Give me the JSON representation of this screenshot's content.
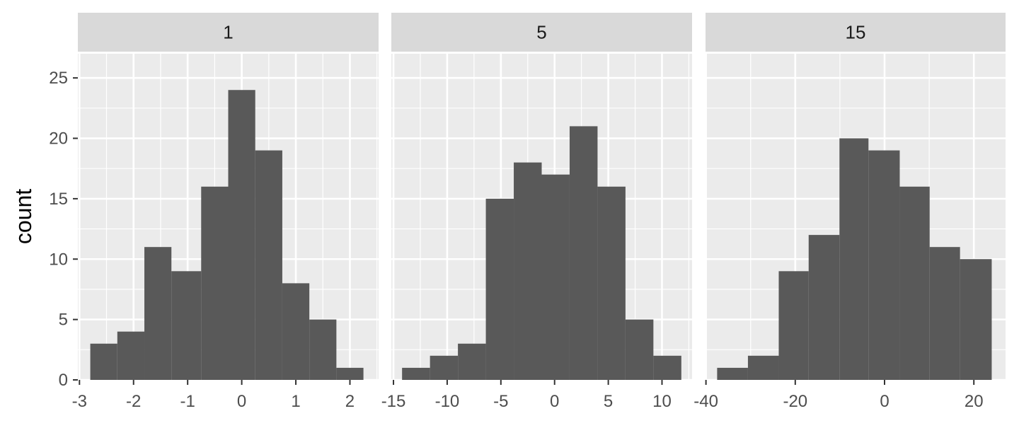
{
  "chart_data": {
    "type": "bar",
    "subtype": "histogram-facets",
    "ylabel": "count",
    "xlabel": "",
    "ylim": [
      0,
      27
    ],
    "y_ticks": [
      0,
      5,
      10,
      15,
      20,
      25
    ],
    "bar_color": "#595959",
    "panel_bg": "#ebebeb",
    "strip_bg": "#d9d9d9",
    "grid": true,
    "facets": [
      {
        "label": "1",
        "xlim": [
          -3.03,
          2.53
        ],
        "x_ticks": [
          -3,
          -2,
          -1,
          0,
          1,
          2
        ],
        "x_tick_labels": [
          "-3",
          "-2",
          "-1",
          "0",
          "1",
          "2"
        ],
        "bins": [
          {
            "x0": -2.8,
            "x1": -2.3,
            "count": 3
          },
          {
            "x0": -2.3,
            "x1": -1.8,
            "count": 4
          },
          {
            "x0": -1.8,
            "x1": -1.3,
            "count": 11
          },
          {
            "x0": -1.3,
            "x1": -0.75,
            "count": 9
          },
          {
            "x0": -0.75,
            "x1": -0.25,
            "count": 16
          },
          {
            "x0": -0.25,
            "x1": 0.25,
            "count": 24
          },
          {
            "x0": 0.25,
            "x1": 0.75,
            "count": 19
          },
          {
            "x0": 0.75,
            "x1": 1.25,
            "count": 8
          },
          {
            "x0": 1.25,
            "x1": 1.75,
            "count": 5
          },
          {
            "x0": 1.75,
            "x1": 2.25,
            "count": 1
          }
        ]
      },
      {
        "label": "5",
        "xlim": [
          -15.2,
          12.8
        ],
        "x_ticks": [
          -15,
          -10,
          -5,
          0,
          5,
          10
        ],
        "x_tick_labels": [
          "-15",
          "-10",
          "-5",
          "0",
          "5",
          "10"
        ],
        "bins": [
          {
            "x0": -14.2,
            "x1": -11.6,
            "count": 1
          },
          {
            "x0": -11.6,
            "x1": -9.0,
            "count": 2
          },
          {
            "x0": -9.0,
            "x1": -6.4,
            "count": 3
          },
          {
            "x0": -6.4,
            "x1": -3.8,
            "count": 15
          },
          {
            "x0": -3.8,
            "x1": -1.2,
            "count": 18
          },
          {
            "x0": -1.2,
            "x1": 1.4,
            "count": 17
          },
          {
            "x0": 1.4,
            "x1": 4.0,
            "count": 21
          },
          {
            "x0": 4.0,
            "x1": 6.6,
            "count": 16
          },
          {
            "x0": 6.6,
            "x1": 9.2,
            "count": 5
          },
          {
            "x0": 9.2,
            "x1": 11.8,
            "count": 2
          }
        ]
      },
      {
        "label": "15",
        "xlim": [
          -40.1,
          27.1
        ],
        "x_ticks": [
          -40,
          -20,
          0,
          20
        ],
        "x_tick_labels": [
          "-40",
          "-20",
          "0",
          "20"
        ],
        "bins": [
          {
            "x0": -37.5,
            "x1": -30.6,
            "count": 1
          },
          {
            "x0": -30.6,
            "x1": -23.7,
            "count": 2
          },
          {
            "x0": -23.7,
            "x1": -17.0,
            "count": 9
          },
          {
            "x0": -17.0,
            "x1": -10.1,
            "count": 12
          },
          {
            "x0": -10.1,
            "x1": -3.6,
            "count": 20
          },
          {
            "x0": -3.6,
            "x1": 3.4,
            "count": 19
          },
          {
            "x0": 3.4,
            "x1": 10.1,
            "count": 16
          },
          {
            "x0": 10.1,
            "x1": 16.9,
            "count": 11
          },
          {
            "x0": 16.9,
            "x1": 24.0,
            "count": 10
          }
        ]
      }
    ]
  }
}
